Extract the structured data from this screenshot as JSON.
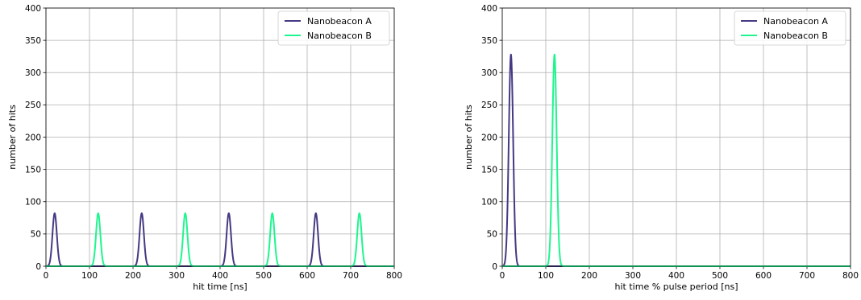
{
  "colors": {
    "series_a": "#443983",
    "series_b": "#1ff58f",
    "grid": "#b0b0b0",
    "axis": "#000000"
  },
  "chart_data": [
    {
      "type": "line",
      "xlabel": "hit time [ns]",
      "ylabel": "number of hits",
      "xlim": [
        0,
        800
      ],
      "ylim": [
        0,
        400
      ],
      "xticks": [
        "0",
        "100",
        "200",
        "300",
        "400",
        "500",
        "600",
        "700",
        "800"
      ],
      "yticks": [
        "0",
        "50",
        "100",
        "150",
        "200",
        "250",
        "300",
        "350",
        "400"
      ],
      "grid": true,
      "legend_position": "top-right",
      "series": [
        {
          "name": "Nanobeacon A",
          "color": "#443983",
          "peaks": [
            {
              "center": 20,
              "height": 82,
              "width": 5
            },
            {
              "center": 220,
              "height": 82,
              "width": 5
            },
            {
              "center": 420,
              "height": 82,
              "width": 5
            },
            {
              "center": 620,
              "height": 82,
              "width": 5
            }
          ]
        },
        {
          "name": "Nanobeacon B",
          "color": "#1ff58f",
          "peaks": [
            {
              "center": 120,
              "height": 82,
              "width": 5
            },
            {
              "center": 320,
              "height": 82,
              "width": 5
            },
            {
              "center": 520,
              "height": 82,
              "width": 5
            },
            {
              "center": 720,
              "height": 82,
              "width": 5
            }
          ]
        }
      ]
    },
    {
      "type": "line",
      "xlabel": "hit time % pulse period [ns]",
      "ylabel": "number of hits",
      "xlim": [
        0,
        800
      ],
      "ylim": [
        0,
        400
      ],
      "xticks": [
        "0",
        "100",
        "200",
        "300",
        "400",
        "500",
        "600",
        "700",
        "800"
      ],
      "yticks": [
        "0",
        "50",
        "100",
        "150",
        "200",
        "250",
        "300",
        "350",
        "400"
      ],
      "grid": true,
      "legend_position": "top-right",
      "series": [
        {
          "name": "Nanobeacon A",
          "color": "#443983",
          "peaks": [
            {
              "center": 20,
              "height": 328,
              "width": 5
            }
          ]
        },
        {
          "name": "Nanobeacon B",
          "color": "#1ff58f",
          "peaks": [
            {
              "center": 120,
              "height": 328,
              "width": 5
            }
          ]
        }
      ]
    }
  ]
}
